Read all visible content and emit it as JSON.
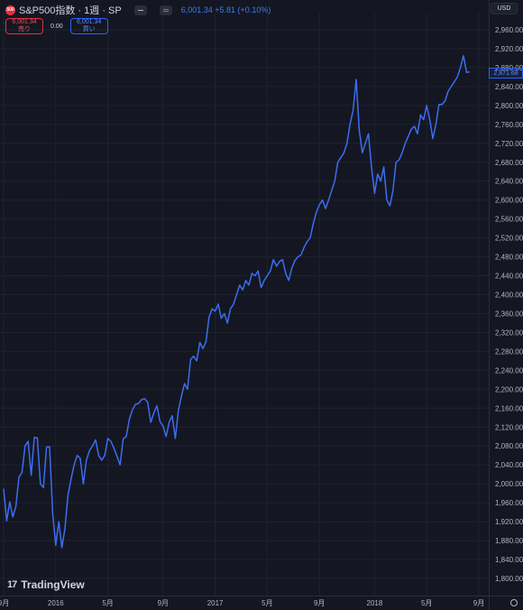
{
  "header": {
    "badge": "500",
    "symbol_title": "S&P500指数 · 1週 · SP",
    "price": "6,001.34",
    "change": "+5.81 (+0.10%)",
    "currency": "USD"
  },
  "trade": {
    "sell_price": "6,001.34",
    "sell_label": "売り",
    "spread": "0.00",
    "buy_price": "6,001.34",
    "buy_label": "買い"
  },
  "last_price_label": "2,871.68",
  "brand": {
    "name": "TradingView"
  },
  "colors": {
    "line": "#3d6cf0",
    "background": "#141722",
    "grid": "#1e2230",
    "axis_text": "#b2b5be"
  },
  "icons": [
    "minus-icon",
    "equals-icon",
    "gear-icon"
  ],
  "chart_data": {
    "type": "line",
    "title": "",
    "xlabel": "",
    "ylabel": "",
    "ylim": [
      1780,
      2980
    ],
    "y_ticks": [
      1800,
      1840,
      1880,
      1920,
      1960,
      2000,
      2040,
      2080,
      2120,
      2160,
      2200,
      2240,
      2280,
      2320,
      2360,
      2400,
      2440,
      2480,
      2520,
      2560,
      2600,
      2640,
      2680,
      2720,
      2760,
      2800,
      2840,
      2880,
      2920,
      2960
    ],
    "y_tick_labels": [
      "1,800.00",
      "1,840.00",
      "1,880.00",
      "1,920.00",
      "1,960.00",
      "2,000.00",
      "2,040.00",
      "2,080.00",
      "2,120.00",
      "2,160.00",
      "2,200.00",
      "2,240.00",
      "2,280.00",
      "2,320.00",
      "2,360.00",
      "2,400.00",
      "2,440.00",
      "2,480.00",
      "2,520.00",
      "2,560.00",
      "2,600.00",
      "2,640.00",
      "2,680.00",
      "2,720.00",
      "2,760.00",
      "2,800.00",
      "2,840.00",
      "2,880.00",
      "2,920.00",
      "2,960.00"
    ],
    "x_ticks": [
      {
        "label": "9月",
        "week": 0
      },
      {
        "label": "2016",
        "week": 17
      },
      {
        "label": "5月",
        "week": 34
      },
      {
        "label": "9月",
        "week": 52
      },
      {
        "label": "2017",
        "week": 69
      },
      {
        "label": "5月",
        "week": 86
      },
      {
        "label": "9月",
        "week": 103
      },
      {
        "label": "2018",
        "week": 121
      },
      {
        "label": "5月",
        "week": 138
      },
      {
        "label": "9月",
        "week": 155
      }
    ],
    "x_range": [
      0,
      157
    ],
    "series": [
      {
        "values": [
          1990,
          1922,
          1962,
          1930,
          1952,
          2014,
          2024,
          2080,
          2090,
          2018,
          2098,
          2097,
          2000,
          1992,
          2078,
          2078,
          1938,
          1870,
          1920,
          1865,
          1905,
          1976,
          2010,
          2040,
          2060,
          2054,
          2000,
          2050,
          2070,
          2080,
          2093,
          2060,
          2050,
          2060,
          2096,
          2090,
          2075,
          2058,
          2040,
          2095,
          2100,
          2136,
          2156,
          2168,
          2170,
          2178,
          2180,
          2172,
          2130,
          2150,
          2165,
          2132,
          2122,
          2100,
          2130,
          2144,
          2096,
          2155,
          2185,
          2212,
          2200,
          2263,
          2270,
          2260,
          2299,
          2286,
          2300,
          2352,
          2370,
          2365,
          2380,
          2350,
          2360,
          2340,
          2370,
          2380,
          2400,
          2420,
          2410,
          2430,
          2420,
          2445,
          2440,
          2450,
          2415,
          2430,
          2440,
          2450,
          2474,
          2460,
          2470,
          2474,
          2445,
          2430,
          2456,
          2472,
          2480,
          2484,
          2500,
          2512,
          2520,
          2550,
          2574,
          2590,
          2600,
          2582,
          2600,
          2620,
          2640,
          2680,
          2690,
          2700,
          2720,
          2760,
          2790,
          2855,
          2748,
          2700,
          2720,
          2740,
          2670,
          2614,
          2655,
          2640,
          2670,
          2600,
          2588,
          2620,
          2680,
          2685,
          2700,
          2720,
          2735,
          2750,
          2756,
          2740,
          2780,
          2770,
          2800,
          2770,
          2730,
          2760,
          2802,
          2802,
          2810,
          2830,
          2840,
          2850,
          2860,
          2880,
          2905,
          2870,
          2871
        ]
      }
    ]
  }
}
